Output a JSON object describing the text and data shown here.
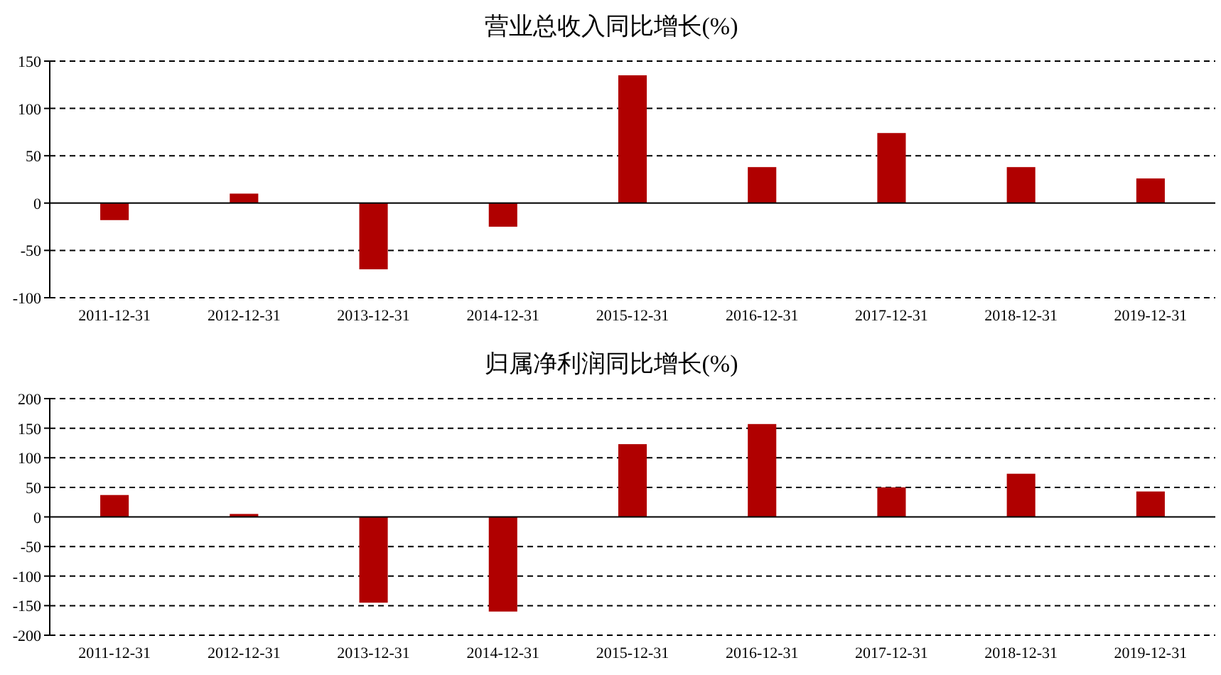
{
  "chart_data": [
    {
      "type": "bar",
      "title": "营业总收入同比增长(%)",
      "categories": [
        "2011-12-31",
        "2012-12-31",
        "2013-12-31",
        "2014-12-31",
        "2015-12-31",
        "2016-12-31",
        "2017-12-31",
        "2018-12-31",
        "2019-12-31"
      ],
      "values": [
        -18,
        10,
        -70,
        -25,
        135,
        38,
        74,
        38,
        26
      ],
      "color": "#b00000",
      "ylim": [
        -100,
        150
      ],
      "yticks": [
        -100,
        -50,
        0,
        50,
        100,
        150
      ],
      "grid": "y"
    },
    {
      "type": "bar",
      "title": "归属净利润同比增长(%)",
      "categories": [
        "2011-12-31",
        "2012-12-31",
        "2013-12-31",
        "2014-12-31",
        "2015-12-31",
        "2016-12-31",
        "2017-12-31",
        "2018-12-31",
        "2019-12-31"
      ],
      "values": [
        37,
        5,
        -145,
        -160,
        123,
        157,
        50,
        73,
        43
      ],
      "color": "#b00000",
      "ylim": [
        -200,
        200
      ],
      "yticks": [
        -200,
        -150,
        -100,
        -50,
        0,
        50,
        100,
        150,
        200
      ],
      "grid": "y"
    }
  ]
}
